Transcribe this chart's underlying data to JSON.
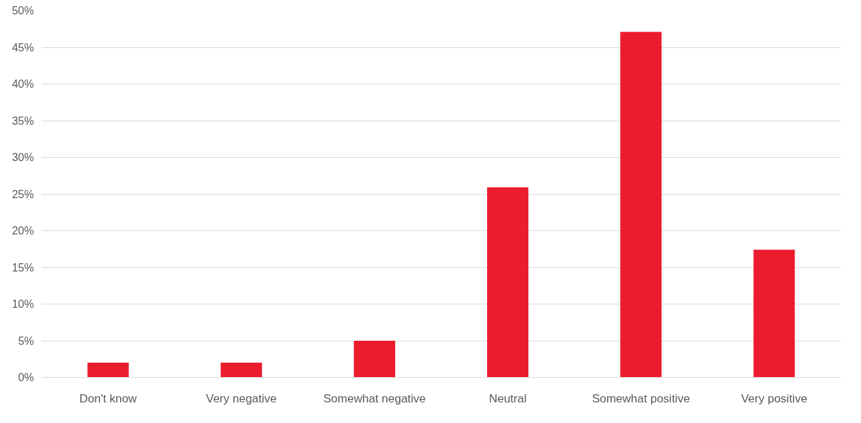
{
  "chart_data": {
    "type": "bar",
    "categories": [
      "Don't know",
      "Very negative",
      "Somewhat negative",
      "Neutral",
      "Somewhat positive",
      "Very positive"
    ],
    "values": [
      2.0,
      2.0,
      5.0,
      25.9,
      47.1,
      17.4
    ],
    "color": "#ed1b2e",
    "ylim": [
      0,
      50
    ],
    "yticks": [
      {
        "value": 0,
        "label": "0%"
      },
      {
        "value": 5,
        "label": "5%"
      },
      {
        "value": 10,
        "label": "10%"
      },
      {
        "value": 15,
        "label": "15%"
      },
      {
        "value": 20,
        "label": "20%"
      },
      {
        "value": 25,
        "label": "25%"
      },
      {
        "value": 30,
        "label": "30%"
      },
      {
        "value": 35,
        "label": "35%"
      },
      {
        "value": 40,
        "label": "40%"
      },
      {
        "value": 45,
        "label": "45%"
      },
      {
        "value": 50,
        "label": "50%"
      }
    ],
    "grid": "y"
  }
}
